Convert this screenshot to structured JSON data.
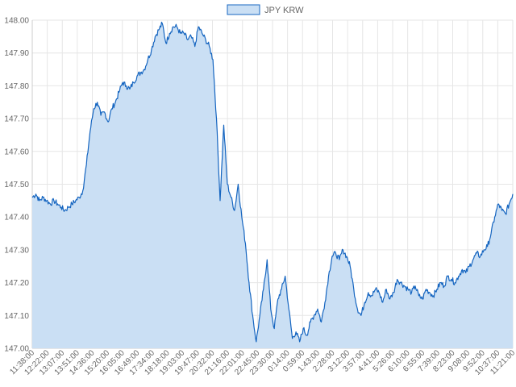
{
  "chart_data": {
    "type": "area",
    "title": "",
    "xlabel": "",
    "ylabel": "",
    "legend": {
      "placement": "top-center",
      "entries": [
        "JPY KRW"
      ]
    },
    "grid": true,
    "ylim": [
      147.0,
      148.0
    ],
    "y_ticks": [
      "148.00",
      "147.90",
      "147.80",
      "147.70",
      "147.60",
      "147.50",
      "147.40",
      "147.30",
      "147.20",
      "147.10",
      "147.00"
    ],
    "x_tick_labels": [
      "11:38:00",
      "12:22:00",
      "13:07:00",
      "13:51:00",
      "14:36:00",
      "15:20:00",
      "16:05:00",
      "16:49:00",
      "17:34:00",
      "18:18:00",
      "19:03:00",
      "19:47:00",
      "20:32:00",
      "21:16:00",
      "22:01:00",
      "22:45:00",
      "23:30:00",
      "0:14:00",
      "0:59:00",
      "1:43:00",
      "2:28:00",
      "3:12:00",
      "3:57:00",
      "4:41:00",
      "5:26:00",
      "6:10:00",
      "6:55:00",
      "7:39:00",
      "8:23:00",
      "9:08:00",
      "9:52:00",
      "10:37:00",
      "11:21:00"
    ],
    "series": [
      {
        "name": "JPY KRW",
        "color": "#1565c0",
        "fill": "#cadff4",
        "values": [
          147.46,
          147.47,
          147.45,
          147.46,
          147.45,
          147.44,
          147.45,
          147.44,
          147.43,
          147.42,
          147.43,
          147.44,
          147.45,
          147.46,
          147.48,
          147.56,
          147.66,
          147.73,
          147.75,
          147.71,
          147.72,
          147.69,
          147.73,
          147.75,
          147.78,
          147.81,
          147.8,
          147.79,
          147.81,
          147.83,
          147.84,
          147.85,
          147.88,
          147.91,
          147.95,
          147.97,
          147.99,
          147.93,
          147.96,
          147.98,
          147.98,
          147.96,
          147.96,
          147.94,
          147.95,
          147.92,
          147.98,
          147.96,
          147.94,
          147.92,
          147.88,
          147.7,
          147.45,
          147.68,
          147.5,
          147.46,
          147.42,
          147.5,
          147.4,
          147.32,
          147.2,
          147.1,
          147.02,
          147.1,
          147.18,
          147.27,
          147.12,
          147.06,
          147.15,
          147.18,
          147.22,
          147.12,
          147.03,
          147.05,
          147.02,
          147.06,
          147.04,
          147.08,
          147.1,
          147.12,
          147.08,
          147.14,
          147.22,
          147.28,
          147.29,
          147.27,
          147.3,
          147.28,
          147.25,
          147.18,
          147.12,
          147.1,
          147.14,
          147.17,
          147.16,
          147.18,
          147.17,
          147.14,
          147.18,
          147.15,
          147.17,
          147.21,
          147.2,
          147.19,
          147.18,
          147.17,
          147.19,
          147.16,
          147.15,
          147.18,
          147.17,
          147.16,
          147.18,
          147.2,
          147.19,
          147.22,
          147.21,
          147.2,
          147.22,
          147.24,
          147.23,
          147.25,
          147.27,
          147.29,
          147.28,
          147.3,
          147.31,
          147.35,
          147.4,
          147.44,
          147.42,
          147.41,
          147.44,
          147.47
        ]
      }
    ]
  }
}
